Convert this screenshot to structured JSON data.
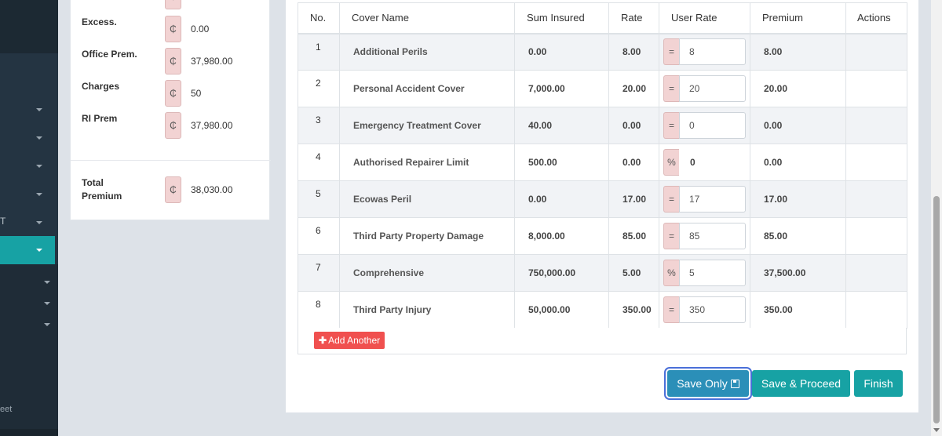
{
  "sidebar": {
    "fragments": [
      "T",
      "eet"
    ]
  },
  "summary": {
    "currency_symbol": "₵",
    "rows": [
      {
        "label": "Excess.",
        "value": "0.00"
      },
      {
        "label": "Office Prem.",
        "value": "37,980.00"
      },
      {
        "label": "Charges",
        "value": "50"
      },
      {
        "label": "RI Prem",
        "value": "37,980.00"
      }
    ],
    "total": {
      "label_line1": "Total",
      "label_line2": "Premium",
      "value": "38,030.00"
    }
  },
  "table": {
    "headers": [
      "No.",
      "Cover Name",
      "Sum Insured",
      "Rate",
      "User Rate",
      "Premium",
      "Actions"
    ],
    "rows": [
      {
        "no": "1",
        "name": "Additional Perils",
        "sum": "0.00",
        "rate": "8.00",
        "addon": "=",
        "user_rate": "8",
        "premium": "8.00"
      },
      {
        "no": "2",
        "name": "Personal Accident Cover",
        "sum": "7,000.00",
        "rate": "20.00",
        "addon": "=",
        "user_rate": "20",
        "premium": "20.00"
      },
      {
        "no": "3",
        "name": "Emergency Treatment Cover",
        "sum": "40.00",
        "rate": "0.00",
        "addon": "=",
        "user_rate": "0",
        "premium": "0.00"
      },
      {
        "no": "4",
        "name": "Authorised Repairer Limit",
        "sum": "500.00",
        "rate": "0.00",
        "addon": "%",
        "user_rate": "0",
        "premium": "0.00"
      },
      {
        "no": "5",
        "name": "Ecowas Peril",
        "sum": "0.00",
        "rate": "17.00",
        "addon": "=",
        "user_rate": "17",
        "premium": "17.00"
      },
      {
        "no": "6",
        "name": "Third Party Property Damage",
        "sum": "8,000.00",
        "rate": "85.00",
        "addon": "=",
        "user_rate": "85",
        "premium": "85.00"
      },
      {
        "no": "7",
        "name": "Comprehensive",
        "sum": "750,000.00",
        "rate": "5.00",
        "addon": "%",
        "user_rate": "5",
        "premium": "37,500.00"
      },
      {
        "no": "8",
        "name": "Third Party Injury",
        "sum": "50,000.00",
        "rate": "350.00",
        "addon": "=",
        "user_rate": "350",
        "premium": "350.00"
      }
    ]
  },
  "actions": {
    "add_another": "Add Another",
    "save_only": "Save Only",
    "save_proceed": "Save & Proceed",
    "finish": "Finish"
  }
}
